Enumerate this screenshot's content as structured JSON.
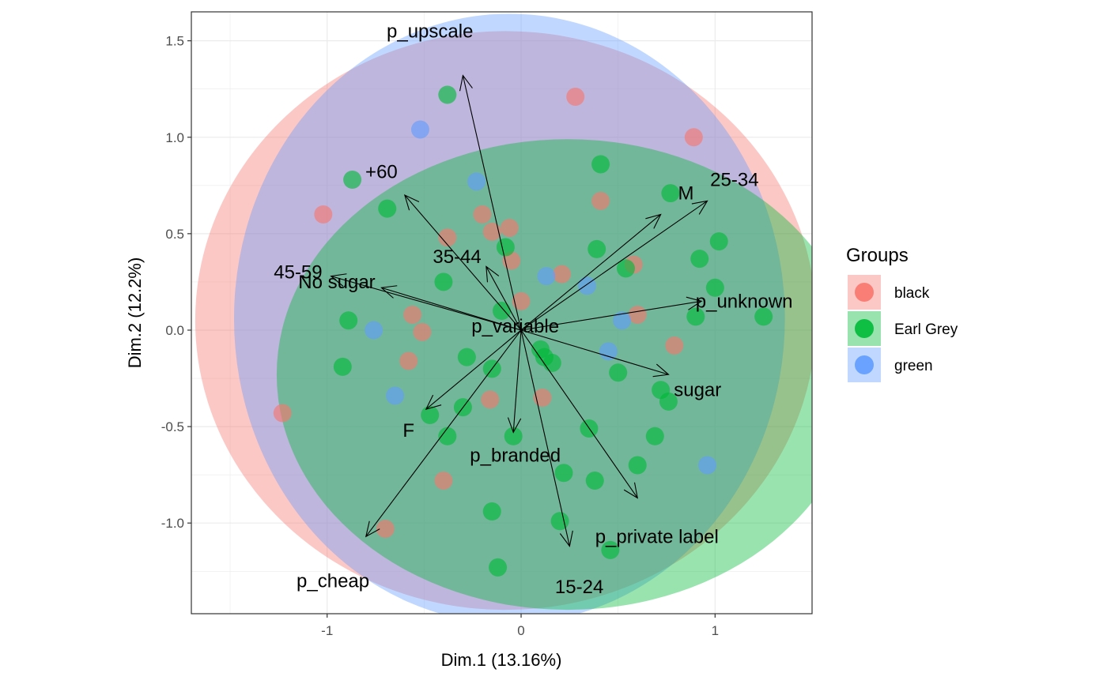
{
  "chart_data": {
    "type": "scatter",
    "title": "",
    "xlabel": "Dim.1 (13.16%)",
    "ylabel": "Dim.2 (12.2%)",
    "xlim": [
      -1.7,
      1.5
    ],
    "ylim": [
      -1.47,
      1.65
    ],
    "x_ticks": [
      -1,
      0,
      1
    ],
    "y_ticks": [
      -1.0,
      -0.5,
      0.0,
      0.5,
      1.0,
      1.5
    ],
    "x_tick_labels": [
      "-1",
      "0",
      "1"
    ],
    "y_tick_labels": [
      "-1.0",
      "-0.5",
      "0.0",
      "0.5",
      "1.0",
      "1.5"
    ],
    "grid": true,
    "legend": {
      "title": "Groups",
      "position": "right",
      "entries": [
        {
          "name": "black",
          "color": "#F8766D"
        },
        {
          "name": "Earl Grey",
          "color": "#00BA38"
        },
        {
          "name": "green",
          "color": "#619CFF"
        }
      ]
    },
    "ellipses": [
      {
        "group": "black",
        "cx": -0.08,
        "cy": 0.05,
        "rx": 1.6,
        "ry": 1.5,
        "color": "#F8766D",
        "opacity": 0.4
      },
      {
        "group": "green",
        "cx": -0.06,
        "cy": 0.06,
        "rx": 1.42,
        "ry": 1.58,
        "color": "#619CFF",
        "opacity": 0.4
      },
      {
        "group": "Earl Grey",
        "cx": 0.24,
        "cy": -0.23,
        "rx": 1.5,
        "ry": 1.22,
        "color": "#00BA38",
        "opacity": 0.4
      }
    ],
    "series": [
      {
        "name": "black",
        "color": "#F8766D",
        "points": [
          [
            0.28,
            1.21
          ],
          [
            0.89,
            1.0
          ],
          [
            -1.02,
            0.6
          ],
          [
            -1.23,
            -0.43
          ],
          [
            -0.7,
            -1.03
          ],
          [
            -0.2,
            0.6
          ],
          [
            -0.38,
            0.48
          ],
          [
            -0.15,
            0.51
          ],
          [
            -0.06,
            0.53
          ],
          [
            0.41,
            0.67
          ],
          [
            0.58,
            0.34
          ],
          [
            0.21,
            0.29
          ],
          [
            -0.56,
            0.08
          ],
          [
            -0.51,
            -0.01
          ],
          [
            -0.58,
            -0.16
          ],
          [
            -0.16,
            -0.36
          ],
          [
            0.11,
            -0.35
          ],
          [
            -0.4,
            -0.78
          ],
          [
            0.79,
            -0.08
          ],
          [
            0.6,
            0.08
          ],
          [
            -0.05,
            0.36
          ],
          [
            0.0,
            0.15
          ]
        ]
      },
      {
        "name": "Earl Grey",
        "color": "#00BA38",
        "points": [
          [
            -0.38,
            1.22
          ],
          [
            0.41,
            0.86
          ],
          [
            0.77,
            0.71
          ],
          [
            -0.87,
            0.78
          ],
          [
            -0.69,
            0.63
          ],
          [
            1.02,
            0.46
          ],
          [
            0.92,
            0.37
          ],
          [
            1.0,
            0.22
          ],
          [
            0.9,
            0.07
          ],
          [
            1.25,
            0.07
          ],
          [
            0.39,
            0.42
          ],
          [
            0.54,
            0.32
          ],
          [
            -0.4,
            0.25
          ],
          [
            -0.89,
            0.05
          ],
          [
            -0.92,
            -0.19
          ],
          [
            -0.28,
            -0.14
          ],
          [
            -0.15,
            -0.2
          ],
          [
            0.1,
            -0.1
          ],
          [
            0.16,
            -0.17
          ],
          [
            0.5,
            -0.22
          ],
          [
            0.72,
            -0.31
          ],
          [
            0.76,
            -0.37
          ],
          [
            -0.47,
            -0.44
          ],
          [
            -0.38,
            -0.55
          ],
          [
            -0.3,
            -0.4
          ],
          [
            0.35,
            -0.51
          ],
          [
            0.69,
            -0.55
          ],
          [
            0.6,
            -0.7
          ],
          [
            -0.04,
            -0.55
          ],
          [
            0.22,
            -0.74
          ],
          [
            0.38,
            -0.78
          ],
          [
            -0.15,
            -0.94
          ],
          [
            0.2,
            -0.99
          ],
          [
            -0.12,
            -1.23
          ],
          [
            0.46,
            -1.14
          ],
          [
            -0.08,
            0.43
          ],
          [
            -0.1,
            0.1
          ],
          [
            0.12,
            -0.14
          ]
        ]
      },
      {
        "name": "green",
        "color": "#619CFF",
        "points": [
          [
            -0.52,
            1.04
          ],
          [
            -0.23,
            0.77
          ],
          [
            0.34,
            0.23
          ],
          [
            -0.76,
            0.0
          ],
          [
            -0.65,
            -0.34
          ],
          [
            0.52,
            0.05
          ],
          [
            0.45,
            -0.11
          ],
          [
            0.96,
            -0.7
          ],
          [
            0.13,
            0.28
          ]
        ]
      }
    ],
    "arrows": [
      {
        "label": "p_upscale",
        "end": [
          -0.3,
          1.32
        ],
        "label_pos": [
          -0.47,
          1.55
        ]
      },
      {
        "label": "+60",
        "end": [
          -0.6,
          0.7
        ],
        "label_pos": [
          -0.72,
          0.82
        ]
      },
      {
        "label": "M",
        "end": [
          0.72,
          0.6
        ],
        "label_pos": [
          0.85,
          0.71
        ]
      },
      {
        "label": "25-34",
        "end": [
          0.96,
          0.67
        ],
        "label_pos": [
          1.1,
          0.78
        ]
      },
      {
        "label": "35-44",
        "end": [
          -0.18,
          0.33
        ],
        "label_pos": [
          -0.33,
          0.38
        ]
      },
      {
        "label": "45-59",
        "end": [
          -0.98,
          0.28
        ],
        "label_pos": [
          -1.15,
          0.3
        ]
      },
      {
        "label": "No sugar",
        "end": [
          -0.72,
          0.22
        ],
        "label_pos": [
          -0.95,
          0.25
        ]
      },
      {
        "label": "p_unknown",
        "end": [
          0.93,
          0.15
        ],
        "label_pos": [
          1.15,
          0.15
        ]
      },
      {
        "label": "p_variable",
        "end": [
          0.0,
          0.0
        ],
        "label_pos": [
          -0.03,
          0.02
        ]
      },
      {
        "label": "sugar",
        "end": [
          0.76,
          -0.23
        ],
        "label_pos": [
          0.91,
          -0.31
        ]
      },
      {
        "label": "F",
        "end": [
          -0.49,
          -0.41
        ],
        "label_pos": [
          -0.58,
          -0.52
        ]
      },
      {
        "label": "p_branded",
        "end": [
          -0.04,
          -0.53
        ],
        "label_pos": [
          -0.03,
          -0.65
        ]
      },
      {
        "label": "p_cheap",
        "end": [
          -0.8,
          -1.07
        ],
        "label_pos": [
          -0.97,
          -1.3
        ]
      },
      {
        "label": "p_private label",
        "end": [
          0.25,
          -1.12
        ],
        "label_pos": [
          0.7,
          -1.07
        ]
      },
      {
        "label": "15-24",
        "end": [
          0.6,
          -0.87
        ],
        "label_pos": [
          0.3,
          -1.33
        ]
      }
    ],
    "arrow_origin": [
      0.0,
      0.0
    ]
  }
}
